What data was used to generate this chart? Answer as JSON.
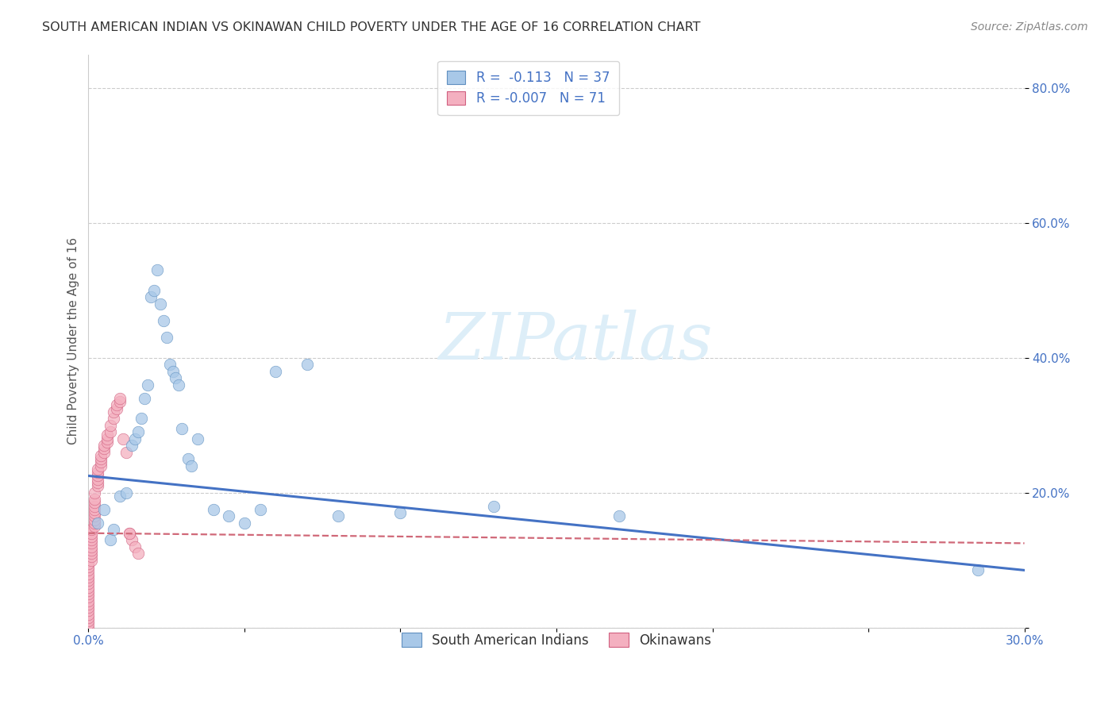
{
  "title": "SOUTH AMERICAN INDIAN VS OKINAWAN CHILD POVERTY UNDER THE AGE OF 16 CORRELATION CHART",
  "source": "Source: ZipAtlas.com",
  "ylabel": "Child Poverty Under the Age of 16",
  "xlim": [
    0.0,
    0.3
  ],
  "ylim": [
    0.0,
    0.85
  ],
  "xticks": [
    0.0,
    0.05,
    0.1,
    0.15,
    0.2,
    0.25,
    0.3
  ],
  "xtick_labels": [
    "0.0%",
    "",
    "",
    "",
    "",
    "",
    "30.0%"
  ],
  "yticks": [
    0.0,
    0.2,
    0.4,
    0.6,
    0.8
  ],
  "ytick_labels": [
    "",
    "20.0%",
    "40.0%",
    "60.0%",
    "80.0%"
  ],
  "grid_color": "#cccccc",
  "background_color": "#ffffff",
  "legend_R_blue": "R =  -0.113",
  "legend_N_blue": "N = 37",
  "legend_R_pink": "R = -0.007",
  "legend_N_pink": "N = 71",
  "blue_color": "#a8c8e8",
  "pink_color": "#f4b0c0",
  "blue_edge_color": "#6090c0",
  "pink_edge_color": "#d06080",
  "blue_line_color": "#4472c4",
  "pink_line_color": "#d06878",
  "watermark_color": "#ddeef8",
  "blue_scatter_x": [
    0.003,
    0.005,
    0.007,
    0.008,
    0.01,
    0.012,
    0.014,
    0.015,
    0.016,
    0.017,
    0.018,
    0.019,
    0.02,
    0.021,
    0.022,
    0.023,
    0.024,
    0.025,
    0.026,
    0.027,
    0.028,
    0.029,
    0.03,
    0.032,
    0.033,
    0.035,
    0.04,
    0.045,
    0.05,
    0.055,
    0.06,
    0.07,
    0.08,
    0.1,
    0.13,
    0.17,
    0.285
  ],
  "blue_scatter_y": [
    0.155,
    0.175,
    0.13,
    0.145,
    0.195,
    0.2,
    0.27,
    0.28,
    0.29,
    0.31,
    0.34,
    0.36,
    0.49,
    0.5,
    0.53,
    0.48,
    0.455,
    0.43,
    0.39,
    0.38,
    0.37,
    0.36,
    0.295,
    0.25,
    0.24,
    0.28,
    0.175,
    0.165,
    0.155,
    0.175,
    0.38,
    0.39,
    0.165,
    0.17,
    0.18,
    0.165,
    0.085
  ],
  "pink_scatter_x": [
    0.0,
    0.0,
    0.0,
    0.0,
    0.0,
    0.0,
    0.0,
    0.0,
    0.0,
    0.0,
    0.0,
    0.0,
    0.0,
    0.0,
    0.0,
    0.0,
    0.0,
    0.0,
    0.0,
    0.0,
    0.001,
    0.001,
    0.001,
    0.001,
    0.001,
    0.001,
    0.001,
    0.001,
    0.001,
    0.001,
    0.002,
    0.002,
    0.002,
    0.002,
    0.002,
    0.002,
    0.002,
    0.002,
    0.002,
    0.002,
    0.003,
    0.003,
    0.003,
    0.003,
    0.003,
    0.003,
    0.004,
    0.004,
    0.004,
    0.004,
    0.005,
    0.005,
    0.005,
    0.006,
    0.006,
    0.006,
    0.007,
    0.007,
    0.008,
    0.008,
    0.009,
    0.009,
    0.01,
    0.01,
    0.011,
    0.012,
    0.013,
    0.014,
    0.015,
    0.016,
    0.013
  ],
  "pink_scatter_y": [
    0.0,
    0.005,
    0.01,
    0.015,
    0.02,
    0.025,
    0.03,
    0.035,
    0.04,
    0.045,
    0.05,
    0.055,
    0.06,
    0.065,
    0.07,
    0.075,
    0.08,
    0.085,
    0.09,
    0.095,
    0.1,
    0.105,
    0.11,
    0.115,
    0.12,
    0.125,
    0.13,
    0.135,
    0.14,
    0.145,
    0.15,
    0.155,
    0.16,
    0.165,
    0.17,
    0.175,
    0.18,
    0.185,
    0.19,
    0.2,
    0.21,
    0.215,
    0.22,
    0.225,
    0.23,
    0.235,
    0.24,
    0.245,
    0.25,
    0.255,
    0.26,
    0.265,
    0.27,
    0.275,
    0.28,
    0.285,
    0.29,
    0.3,
    0.31,
    0.32,
    0.325,
    0.33,
    0.335,
    0.34,
    0.28,
    0.26,
    0.14,
    0.13,
    0.12,
    0.11,
    0.14
  ],
  "blue_trend_x": [
    0.0,
    0.3
  ],
  "blue_trend_y": [
    0.225,
    0.085
  ],
  "pink_trend_x": [
    0.0,
    0.3
  ],
  "pink_trend_y": [
    0.14,
    0.125
  ]
}
